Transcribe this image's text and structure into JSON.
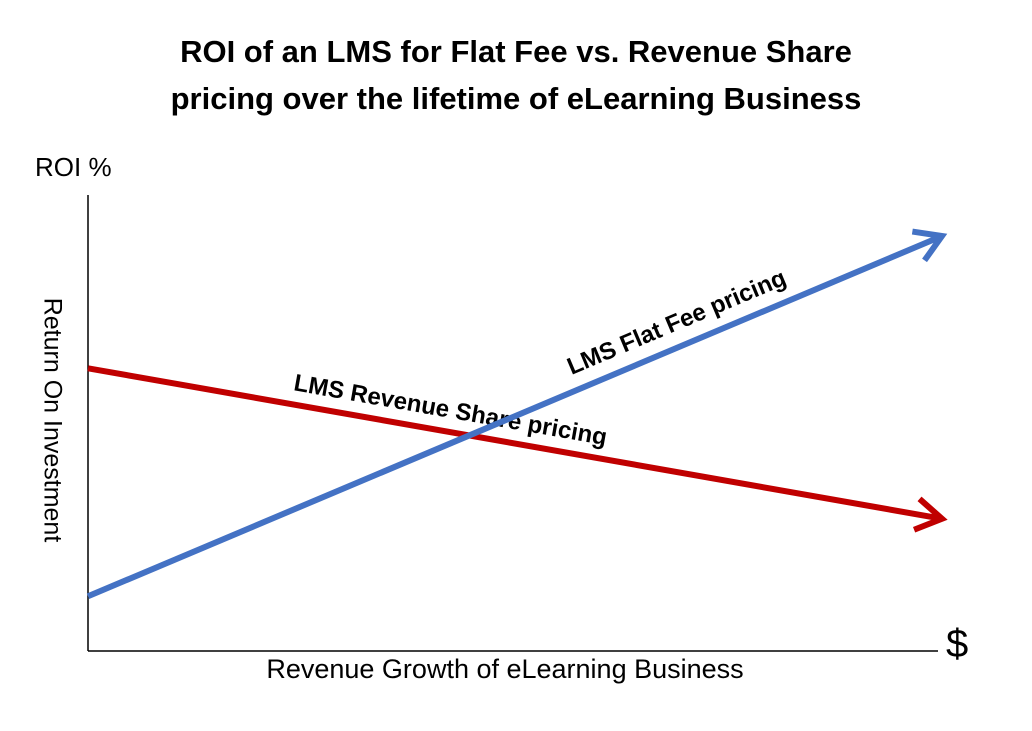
{
  "chart_data": {
    "type": "line",
    "title_lines": [
      "ROI of an LMS for Flat Fee vs. Revenue Share",
      "pricing over the lifetime of eLearning Business"
    ],
    "ylabel_top": "ROI %",
    "ylabel": "Return On Investment",
    "xlabel": "Revenue Growth of eLearning Business",
    "xunit": "$",
    "xlim": [
      0,
      100
    ],
    "ylim": [
      0,
      100
    ],
    "grid": false,
    "legend": "none",
    "series": [
      {
        "name": "LMS Revenue Share pricing",
        "color": "#c00000",
        "x": [
          0,
          100
        ],
        "y": [
          62,
          29
        ]
      },
      {
        "name": "LMS Flat Fee pricing",
        "color": "#4472c4",
        "x": [
          0,
          100
        ],
        "y": [
          12,
          91
        ]
      }
    ]
  }
}
